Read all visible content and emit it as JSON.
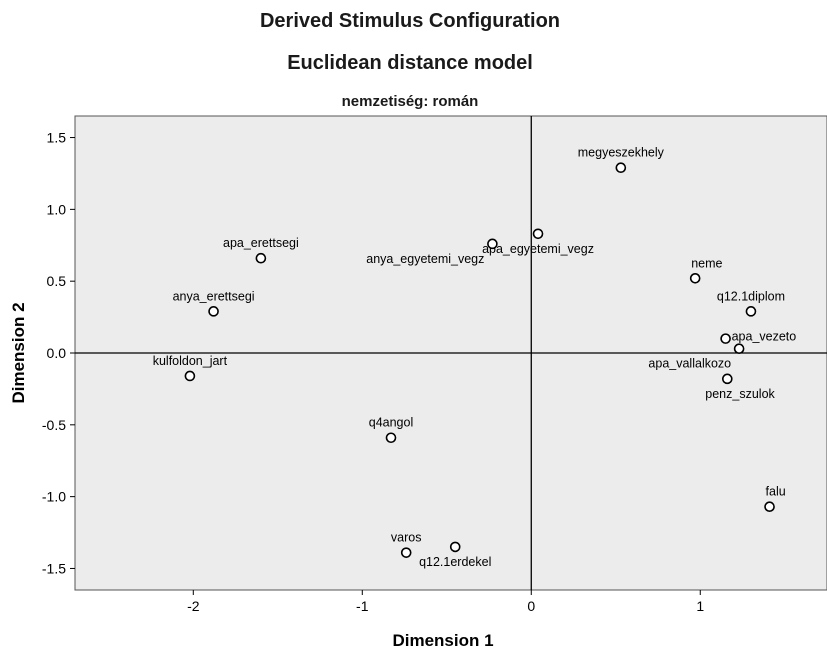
{
  "chart_data": {
    "type": "scatter",
    "title": "Derived Stimulus Configuration",
    "subtitle": "Euclidean distance model",
    "panel_title": "nemzetiség: román",
    "xlabel": "Dimension 1",
    "ylabel": "Dimension 2",
    "xlim": [
      -2.7,
      1.75
    ],
    "ylim": [
      -1.65,
      1.65
    ],
    "x_ticks": [
      -2,
      -1,
      0,
      1
    ],
    "y_ticks": [
      1.5,
      1.0,
      0.5,
      0.0,
      -0.5,
      -1.0,
      -1.5
    ],
    "x_tick_labels": [
      "-2",
      "-1",
      "0",
      "1"
    ],
    "y_tick_labels": [
      "1.5",
      "1.0",
      "0.5",
      "0.0",
      "-0.5",
      "-1.0",
      "-1.5"
    ],
    "reference_lines": {
      "x": 0,
      "y": 0
    },
    "points": [
      {
        "label": "megyeszekhely",
        "x": 0.53,
        "y": 1.29,
        "label_pos": "above"
      },
      {
        "label": "apa_egyetemi_vegz",
        "x": 0.04,
        "y": 0.83,
        "label_pos": "below"
      },
      {
        "label": "anya_egyetemi_vegz",
        "x": -0.23,
        "y": 0.76,
        "label_pos": "below-left"
      },
      {
        "label": "apa_erettsegi",
        "x": -1.6,
        "y": 0.66,
        "label_pos": "above"
      },
      {
        "label": "anya_erettsegi",
        "x": -1.88,
        "y": 0.29,
        "label_pos": "above"
      },
      {
        "label": "neme",
        "x": 0.97,
        "y": 0.52,
        "label_pos": "above-right"
      },
      {
        "label": "q12.1diplom",
        "x": 1.3,
        "y": 0.29,
        "label_pos": "above"
      },
      {
        "label": "apa_vezeto",
        "x": 1.15,
        "y": 0.1,
        "label_pos": "right"
      },
      {
        "label": "apa_vallalkozo",
        "x": 1.23,
        "y": 0.03,
        "label_pos": "below-left"
      },
      {
        "label": "penz_szulok",
        "x": 1.16,
        "y": -0.18,
        "label_pos": "below-right"
      },
      {
        "label": "kulfoldon_jart",
        "x": -2.02,
        "y": -0.16,
        "label_pos": "above"
      },
      {
        "label": "q4angol",
        "x": -0.83,
        "y": -0.59,
        "label_pos": "above"
      },
      {
        "label": "falu",
        "x": 1.41,
        "y": -1.07,
        "label_pos": "above-right"
      },
      {
        "label": "varos",
        "x": -0.74,
        "y": -1.39,
        "label_pos": "above"
      },
      {
        "label": "q12.1erdekel",
        "x": -0.45,
        "y": -1.35,
        "label_pos": "below"
      }
    ]
  }
}
